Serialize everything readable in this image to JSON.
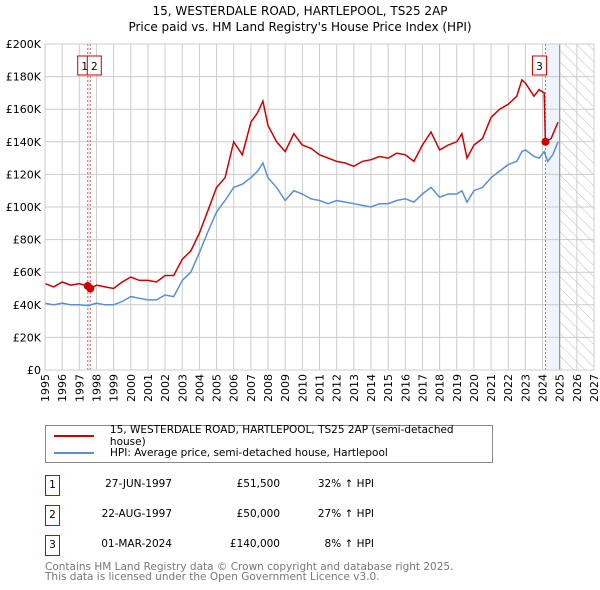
{
  "title": "15, WESTERDALE ROAD, HARTLEPOOL, TS25 2AP",
  "subtitle": "Price paid vs. HM Land Registry's House Price Index (HPI)",
  "chart_data": {
    "type": "line",
    "xlim": [
      1995,
      2027
    ],
    "ylim": [
      0,
      200000
    ],
    "x_ticks": [
      "1995",
      "1996",
      "1997",
      "1998",
      "1999",
      "2000",
      "2001",
      "2002",
      "2003",
      "2004",
      "2005",
      "2006",
      "2007",
      "2008",
      "2009",
      "2010",
      "2011",
      "2012",
      "2013",
      "2014",
      "2015",
      "2016",
      "2017",
      "2018",
      "2019",
      "2020",
      "2021",
      "2022",
      "2023",
      "2024",
      "2025",
      "2026",
      "2027"
    ],
    "y_ticks": [
      {
        "v": 0,
        "label": "£0"
      },
      {
        "v": 20000,
        "label": "£20K"
      },
      {
        "v": 40000,
        "label": "£40K"
      },
      {
        "v": 60000,
        "label": "£60K"
      },
      {
        "v": 80000,
        "label": "£80K"
      },
      {
        "v": 100000,
        "label": "£100K"
      },
      {
        "v": 120000,
        "label": "£120K"
      },
      {
        "v": 140000,
        "label": "£140K"
      },
      {
        "v": 160000,
        "label": "£160K"
      },
      {
        "v": 180000,
        "label": "£180K"
      },
      {
        "v": 200000,
        "label": "£200K"
      }
    ],
    "grid": true,
    "forecast_start": 2025.0,
    "series": [
      {
        "name": "15, WESTERDALE ROAD, HARTLEPOOL, TS25 2AP (semi-detached house)",
        "color": "#cc0000",
        "x": [
          1995,
          1995.5,
          1996,
          1996.5,
          1997,
          1997.49,
          1997.64,
          1998,
          1998.5,
          1999,
          1999.5,
          2000,
          2000.5,
          2001,
          2001.5,
          2002,
          2002.5,
          2003,
          2003.5,
          2004,
          2004.5,
          2005,
          2005.5,
          2006,
          2006.5,
          2007,
          2007.4,
          2007.7,
          2008,
          2008.5,
          2009,
          2009.5,
          2010,
          2010.5,
          2011,
          2011.5,
          2012,
          2012.5,
          2013,
          2013.5,
          2014,
          2014.5,
          2015,
          2015.5,
          2016,
          2016.5,
          2017,
          2017.5,
          2018,
          2018.5,
          2019,
          2019.3,
          2019.6,
          2020,
          2020.5,
          2021,
          2021.5,
          2022,
          2022.5,
          2022.8,
          2023,
          2023.5,
          2023.8,
          2024.1,
          2024.17,
          2024.5,
          2024.9
        ],
        "y": [
          53000,
          51000,
          54000,
          52000,
          53000,
          51500,
          50000,
          52000,
          51000,
          50000,
          54000,
          57000,
          55000,
          55000,
          54000,
          58000,
          58000,
          68000,
          73000,
          84000,
          98000,
          112000,
          118000,
          140000,
          132000,
          152000,
          158000,
          165000,
          150000,
          140000,
          134000,
          145000,
          138000,
          136000,
          132000,
          130000,
          128000,
          127000,
          125000,
          128000,
          129000,
          131000,
          130000,
          133000,
          132000,
          128000,
          138000,
          146000,
          135000,
          138000,
          140000,
          145000,
          130000,
          138000,
          142000,
          155000,
          160000,
          163000,
          168000,
          178000,
          176000,
          168000,
          172000,
          170000,
          140000,
          142000,
          152000
        ]
      },
      {
        "name": "HPI: Average price, semi-detached house, Hartlepool",
        "color": "#5b8fd4",
        "x": [
          1995,
          1995.5,
          1996,
          1996.5,
          1997,
          1997.5,
          1998,
          1998.5,
          1999,
          1999.5,
          2000,
          2000.5,
          2001,
          2001.5,
          2002,
          2002.5,
          2003,
          2003.5,
          2004,
          2004.5,
          2005,
          2005.5,
          2006,
          2006.5,
          2007,
          2007.4,
          2007.7,
          2008,
          2008.5,
          2009,
          2009.5,
          2010,
          2010.5,
          2011,
          2011.5,
          2012,
          2012.5,
          2013,
          2013.5,
          2014,
          2014.5,
          2015,
          2015.5,
          2016,
          2016.5,
          2017,
          2017.5,
          2018,
          2018.5,
          2019,
          2019.3,
          2019.6,
          2020,
          2020.5,
          2021,
          2021.5,
          2022,
          2022.5,
          2022.8,
          2023,
          2023.5,
          2023.8,
          2024.1,
          2024.3,
          2024.6,
          2024.9
        ],
        "y": [
          41000,
          40000,
          41000,
          40000,
          40000,
          39500,
          41000,
          40000,
          40000,
          42000,
          45000,
          44000,
          43000,
          43000,
          46000,
          45000,
          55000,
          60000,
          72000,
          85000,
          97000,
          104000,
          112000,
          114000,
          118000,
          122000,
          127000,
          118000,
          112000,
          104000,
          110000,
          108000,
          105000,
          104000,
          102000,
          104000,
          103000,
          102000,
          101000,
          100000,
          102000,
          102000,
          104000,
          105000,
          103000,
          108000,
          112000,
          106000,
          108000,
          108000,
          110000,
          103000,
          110000,
          112000,
          118000,
          122000,
          126000,
          128000,
          134000,
          135000,
          131000,
          130000,
          134000,
          128000,
          132000,
          140000
        ]
      }
    ],
    "transactions": [
      {
        "label": "1",
        "date": "27-JUN-1997",
        "x": 1997.49,
        "price": "£51,500",
        "price_value": 51500,
        "hpi": "32% ↑ HPI"
      },
      {
        "label": "2",
        "date": "22-AUG-1997",
        "x": 1997.64,
        "price": "£50,000",
        "price_value": 50000,
        "hpi": "27% ↑ HPI"
      },
      {
        "label": "3",
        "date": "01-MAR-2024",
        "x": 2024.17,
        "price": "£140,000",
        "price_value": 140000,
        "hpi": "8% ↑ HPI"
      }
    ]
  },
  "legend": {
    "property": "15, WESTERDALE ROAD, HARTLEPOOL, TS25 2AP (semi-detached house)",
    "hpi": "HPI: Average price, semi-detached house, Hartlepool"
  },
  "footer": {
    "line1": "Contains HM Land Registry data © Crown copyright and database right 2025.",
    "line2": "This data is licensed under the Open Government Licence v3.0."
  }
}
